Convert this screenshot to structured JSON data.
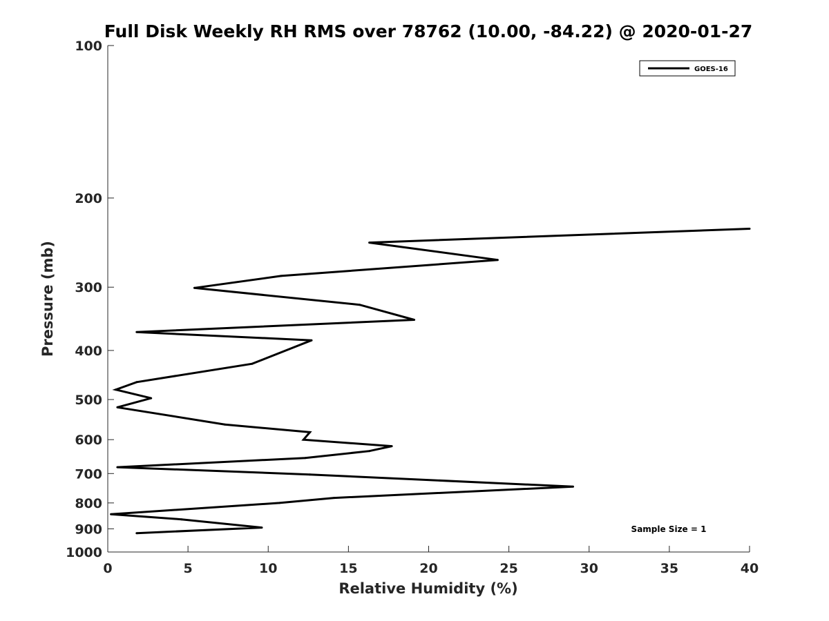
{
  "chart_data": {
    "type": "line",
    "title": "Full Disk Weekly RH RMS over 78762 (10.00, -84.22) @ 2020-01-27",
    "xlabel": "Relative Humidity (%)",
    "ylabel": "Pressure (mb)",
    "xlim": [
      0,
      40
    ],
    "ylim": [
      100,
      1000
    ],
    "yscale": "log",
    "y_reversed": true,
    "grid": false,
    "legend_position": "top-right",
    "x_ticks": [
      0,
      5,
      10,
      15,
      20,
      25,
      30,
      35,
      40
    ],
    "y_ticks": [
      100,
      200,
      300,
      400,
      500,
      600,
      700,
      800,
      900,
      1000
    ],
    "series": [
      {
        "name": "GOES-16",
        "color": "#000000",
        "x": [
          40.0,
          16.3,
          24.3,
          10.8,
          5.4,
          15.7,
          19.1,
          1.8,
          12.7,
          9.0,
          1.8,
          0.5,
          2.7,
          0.6,
          7.3,
          12.6,
          12.2,
          17.7,
          16.3,
          12.3,
          0.6,
          12.6,
          29.0,
          14.1,
          10.7,
          0.2,
          4.6,
          9.6,
          1.8
        ],
        "y": [
          230,
          245,
          265,
          285,
          301,
          325,
          348,
          368,
          382,
          425,
          462,
          478,
          497,
          518,
          560,
          580,
          600,
          618,
          632,
          652,
          680,
          703,
          743,
          782,
          800,
          842,
          862,
          895,
          918
        ]
      }
    ],
    "annotation": "Sample Size = 1"
  }
}
